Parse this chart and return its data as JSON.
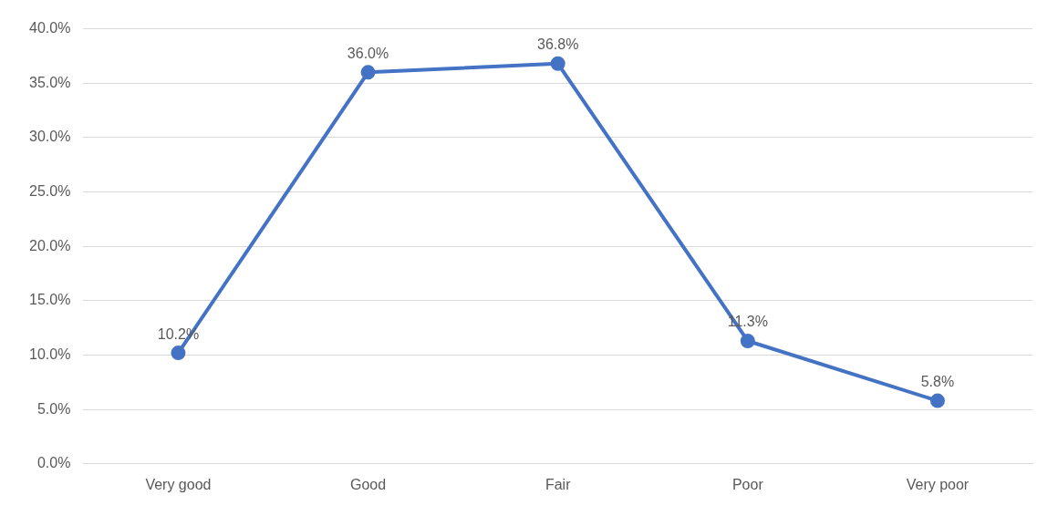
{
  "chart_data": {
    "type": "line",
    "categories": [
      "Very good",
      "Good",
      "Fair",
      "Poor",
      "Very poor"
    ],
    "values": [
      10.2,
      36.0,
      36.8,
      11.3,
      5.8
    ],
    "value_labels": [
      "10.2%",
      "36.0%",
      "36.8%",
      "11.3%",
      "5.8%"
    ],
    "color": "#4472c4",
    "marker": "circle",
    "line_style": "solid",
    "grid": "y",
    "legend": false,
    "ylim": [
      0,
      40
    ],
    "yticks": [
      {
        "value": 0,
        "label": "0.0%"
      },
      {
        "value": 5,
        "label": "5.0%"
      },
      {
        "value": 10,
        "label": "10.0%"
      },
      {
        "value": 15,
        "label": "15.0%"
      },
      {
        "value": 20,
        "label": "20.0%"
      },
      {
        "value": 25,
        "label": "25.0%"
      },
      {
        "value": 30,
        "label": "30.0%"
      },
      {
        "value": 35,
        "label": "35.0%"
      },
      {
        "value": 40,
        "label": "40.0%"
      }
    ]
  }
}
